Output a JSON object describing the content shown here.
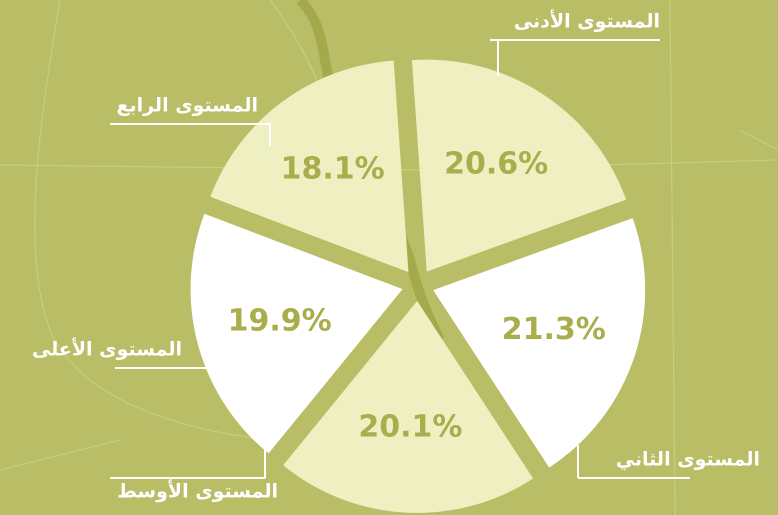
{
  "chart_data": {
    "type": "pie",
    "categories": [
      "المستوى الأدنى",
      "المستوى الثاني",
      "المستوى الأوسط",
      "المستوى الأعلى",
      "المستوى الرابع"
    ],
    "values": [
      20.6,
      21.3,
      20.1,
      19.9,
      18.1
    ],
    "value_labels": [
      "20.6%",
      "21.3%",
      "20.1%",
      "19.9%",
      "18.1%"
    ],
    "colors": [
      "#eef0c2",
      "#ffffff",
      "#eef0c2",
      "#ffffff",
      "#eef0c2"
    ]
  }
}
